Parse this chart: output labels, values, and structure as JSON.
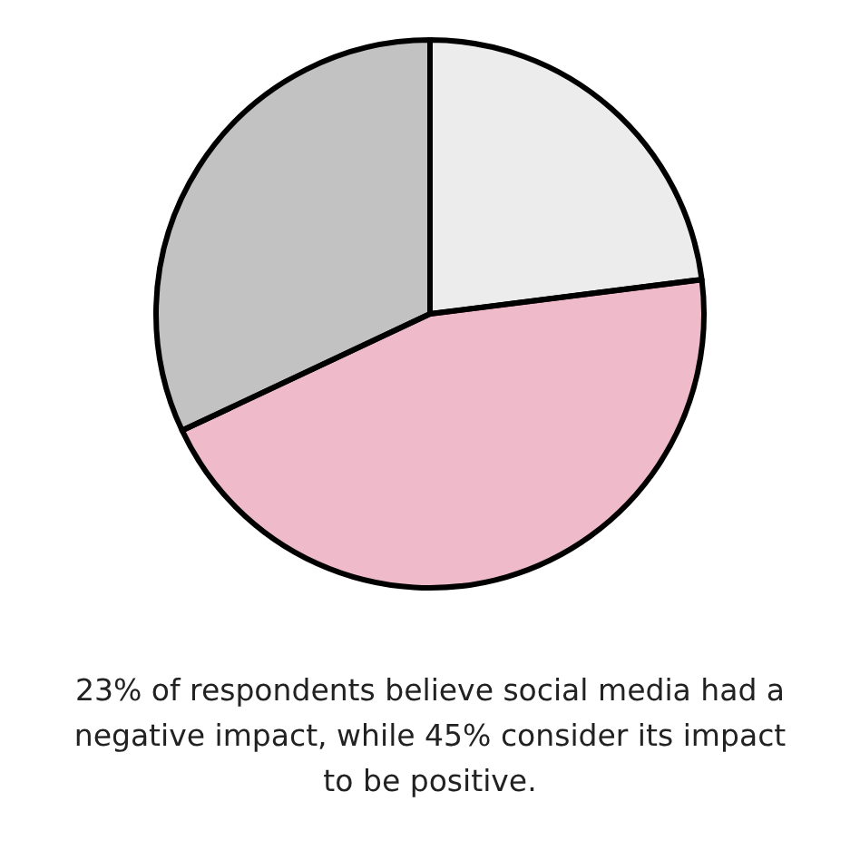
{
  "chart_data": {
    "type": "pie",
    "categories": [
      null,
      null,
      null
    ],
    "values": [
      23,
      45,
      32
    ],
    "colors": [
      "#c8c8c8",
      "#d23c68",
      "#505050"
    ],
    "annotations": [
      "23% of respondents believe social media had a negative impact, while 45% consider its impact to be positive."
    ],
    "legend": false
  }
}
